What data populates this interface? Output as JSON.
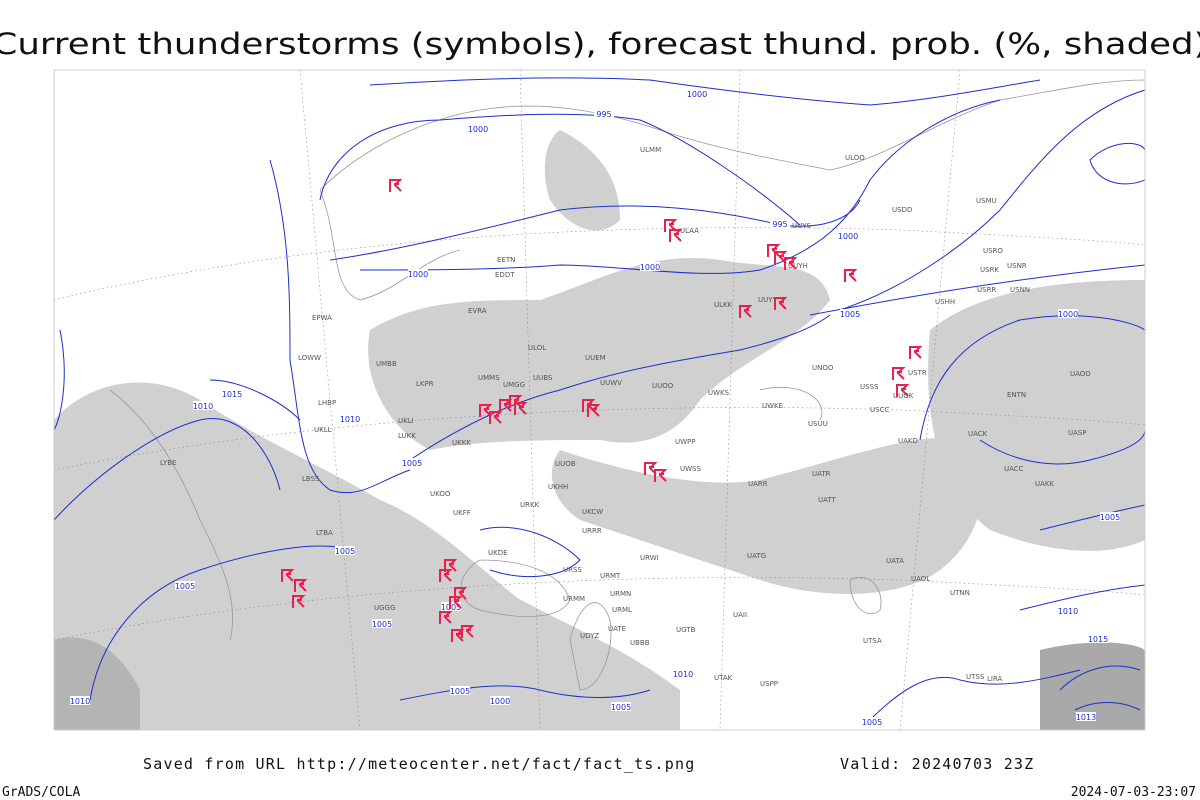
{
  "title": "Current thunderstorms (symbols), forecast thund. prob. (%, shaded)",
  "footer": {
    "source": "Saved from URL http://meteocenter.net/fact/fact_ts.png",
    "valid": "Valid: 20240703 23Z",
    "credit": "GrADS/COLA",
    "timestamp": "2024-07-03-23:07"
  },
  "isobar_labels": [
    "1000",
    "995",
    "1000",
    "995",
    "1000",
    "1000",
    "1005",
    "1000",
    "1015",
    "1010",
    "1010",
    "1005",
    "1005",
    "1005",
    "1005",
    "1005",
    "1000",
    "1005",
    "1010",
    "1005",
    "1000",
    "1005",
    "1010",
    "1015",
    "1010",
    "1013",
    "1005"
  ],
  "stations": [
    "ULMM",
    "ULOO",
    "UUYS",
    "ULAA",
    "UUYH",
    "USDD",
    "USMU",
    "USRO",
    "USRK",
    "USNR",
    "USRR",
    "USNN",
    "USHH",
    "ULKK",
    "UUYY",
    "EVRA",
    "ULOL",
    "UUEM",
    "UMMS",
    "UMGG",
    "UUBS",
    "UUWV",
    "UUOO",
    "UWKS",
    "UWKE",
    "UWPP",
    "UWSS",
    "UUOB",
    "UKKK",
    "UKHH",
    "UKCW",
    "UARR",
    "URWI",
    "URMT",
    "URRR",
    "UATG",
    "UATT",
    "USSS",
    "USTR",
    "USCC",
    "UACK",
    "UACC",
    "UASP",
    "UAKK",
    "UATA",
    "UAOL",
    "UTNN",
    "UTSA",
    "UTSS",
    "LIRA",
    "LYBE",
    "LBSS",
    "LTBA",
    "UGGG",
    "UDYZ",
    "UBBB",
    "UTAK",
    "USPP",
    "UNOO",
    "ENTN",
    "EETN",
    "EDDT",
    "EPWA",
    "UMBB",
    "LKPR",
    "LOWW",
    "LHBP",
    "UKLL",
    "UKLI",
    "LUKK",
    "UKOO",
    "UKFF",
    "UKDE",
    "URKK",
    "URSS",
    "URMM",
    "URMN",
    "URML",
    "UGTB",
    "UATE",
    "UAII",
    "UAKD",
    "UATR",
    "UAOO",
    "USUU",
    "UUOK"
  ]
}
